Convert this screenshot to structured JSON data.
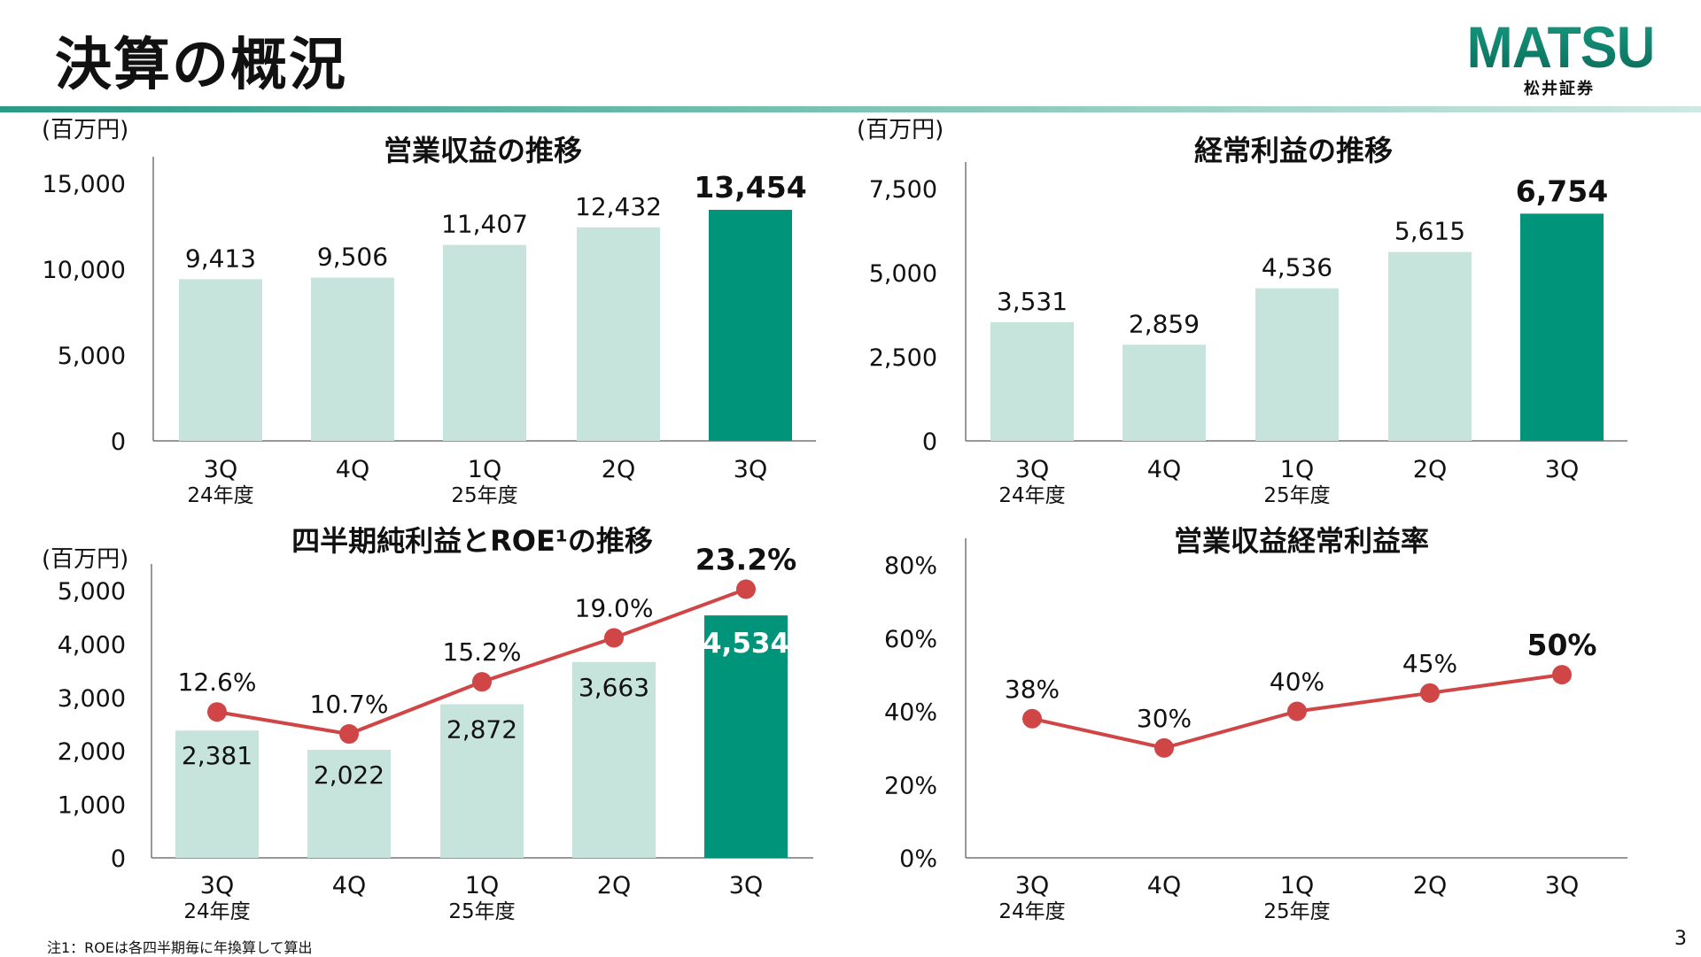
{
  "header": {
    "title": "決算の概況",
    "logo_text": "MATSUI",
    "logo_subtext": "松井証券"
  },
  "colors": {
    "bar_light": "#c6e3dc",
    "bar_highlight": "#00957a",
    "line": "#d04545",
    "accent": "#0f8a73"
  },
  "footnote": "注1：ROEは各四半期毎に年換算して算出",
  "page_number": "3",
  "chart_data": [
    {
      "type": "bar",
      "title": "営業収益の推移",
      "unit": "(百万円)",
      "categories": [
        "3Q",
        "4Q",
        "1Q",
        "2Q",
        "3Q"
      ],
      "category_sublabels": [
        "24年度",
        "",
        "25年度",
        "",
        ""
      ],
      "values": [
        9413,
        9506,
        11407,
        12432,
        13454
      ],
      "value_labels": [
        "9,413",
        "9,506",
        "11,407",
        "12,432",
        "13,454"
      ],
      "highlight_index": 4,
      "ylim": [
        0,
        15000
      ],
      "yticks": [
        "0",
        "5,000",
        "10,000",
        "15,000"
      ],
      "ytick_values": [
        0,
        5000,
        10000,
        15000
      ]
    },
    {
      "type": "bar",
      "title": "経常利益の推移",
      "unit": "(百万円)",
      "categories": [
        "3Q",
        "4Q",
        "1Q",
        "2Q",
        "3Q"
      ],
      "category_sublabels": [
        "24年度",
        "",
        "25年度",
        "",
        ""
      ],
      "values": [
        3531,
        2859,
        4536,
        5615,
        6754
      ],
      "value_labels": [
        "3,531",
        "2,859",
        "4,536",
        "5,615",
        "6,754"
      ],
      "highlight_index": 4,
      "ylim": [
        0,
        7500
      ],
      "yticks": [
        "0",
        "2,500",
        "5,000",
        "7,500"
      ],
      "ytick_values": [
        0,
        2500,
        5000,
        7500
      ]
    },
    {
      "type": "bar+line",
      "title": "四半期純利益とROE¹の推移",
      "unit": "(百万円)",
      "categories": [
        "3Q",
        "4Q",
        "1Q",
        "2Q",
        "3Q"
      ],
      "category_sublabels": [
        "24年度",
        "",
        "25年度",
        "",
        ""
      ],
      "values": [
        2381,
        2022,
        2872,
        3663,
        4534
      ],
      "value_labels": [
        "2,381",
        "2,022",
        "2,872",
        "3,663",
        "4,534"
      ],
      "line_values": [
        12.6,
        10.7,
        15.2,
        19.0,
        23.2
      ],
      "line_labels": [
        "12.6%",
        "10.7%",
        "15.2%",
        "19.0%",
        "23.2%"
      ],
      "highlight_index": 4,
      "ylim": [
        0,
        5000
      ],
      "ylim_line": [
        0,
        25
      ],
      "yticks": [
        "0",
        "1,000",
        "2,000",
        "3,000",
        "4,000",
        "5,000"
      ],
      "ytick_values": [
        0,
        1000,
        2000,
        3000,
        4000,
        5000
      ]
    },
    {
      "type": "line",
      "title": "営業収益経常利益率",
      "unit": "",
      "categories": [
        "3Q",
        "4Q",
        "1Q",
        "2Q",
        "3Q"
      ],
      "category_sublabels": [
        "24年度",
        "",
        "25年度",
        "",
        ""
      ],
      "line_values": [
        38,
        30,
        40,
        45,
        50
      ],
      "line_labels": [
        "38%",
        "30%",
        "40%",
        "45%",
        "50%"
      ],
      "highlight_index": 4,
      "ylim": [
        0,
        80
      ],
      "yticks": [
        "0%",
        "20%",
        "40%",
        "60%",
        "80%"
      ],
      "ytick_values": [
        0,
        20,
        40,
        60,
        80
      ]
    }
  ]
}
